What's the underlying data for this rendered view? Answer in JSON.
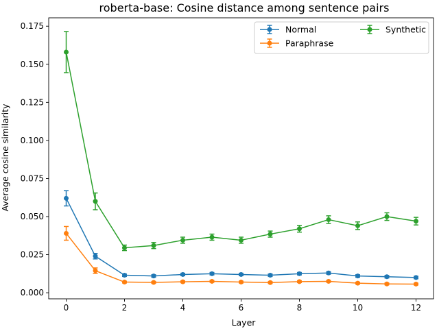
{
  "chart_data": {
    "type": "line",
    "title": "roberta-base: Cosine distance among sentence pairs",
    "xlabel": "Layer",
    "ylabel": "Average cosine similarity",
    "x": [
      0,
      1,
      2,
      3,
      4,
      5,
      6,
      7,
      8,
      9,
      10,
      11,
      12
    ],
    "xlim": [
      -0.6,
      12.6
    ],
    "ylim": [
      -0.004,
      0.1805
    ],
    "x_ticks": [
      0,
      2,
      4,
      6,
      8,
      10,
      12
    ],
    "y_ticks": [
      0.0,
      0.025,
      0.05,
      0.075,
      0.1,
      0.125,
      0.15,
      0.175
    ],
    "y_tick_labels": [
      "0.000",
      "0.025",
      "0.050",
      "0.075",
      "0.100",
      "0.125",
      "0.150",
      "0.175"
    ],
    "grid": false,
    "legend_position": "top-right",
    "series": [
      {
        "name": "Normal",
        "color": "#1f77b4",
        "values": [
          0.062,
          0.024,
          0.0115,
          0.011,
          0.012,
          0.0125,
          0.012,
          0.0115,
          0.0125,
          0.013,
          0.011,
          0.0105,
          0.01
        ],
        "errors": [
          0.005,
          0.0018,
          0.0008,
          0.0008,
          0.0008,
          0.0008,
          0.0008,
          0.0008,
          0.0008,
          0.0008,
          0.0008,
          0.0008,
          0.0008
        ]
      },
      {
        "name": "Paraphrase",
        "color": "#ff7f0e",
        "values": [
          0.039,
          0.0145,
          0.007,
          0.0068,
          0.0072,
          0.0075,
          0.007,
          0.0067,
          0.0073,
          0.0075,
          0.0063,
          0.0058,
          0.0057
        ],
        "errors": [
          0.0045,
          0.0018,
          0.0006,
          0.0006,
          0.0006,
          0.0006,
          0.0006,
          0.0006,
          0.0006,
          0.0006,
          0.0006,
          0.0006,
          0.0006
        ]
      },
      {
        "name": "Synthetic",
        "color": "#2ca02c",
        "values": [
          0.158,
          0.06,
          0.0295,
          0.031,
          0.0345,
          0.0365,
          0.0345,
          0.0385,
          0.042,
          0.048,
          0.044,
          0.05,
          0.047
        ],
        "errors": [
          0.0135,
          0.0055,
          0.0018,
          0.002,
          0.002,
          0.002,
          0.002,
          0.002,
          0.0022,
          0.0025,
          0.0025,
          0.0025,
          0.0025
        ]
      }
    ]
  }
}
